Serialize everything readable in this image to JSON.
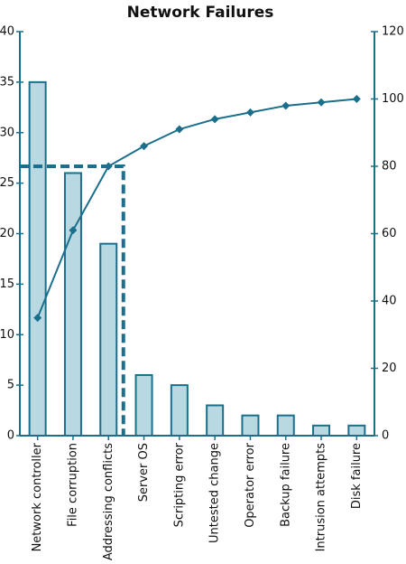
{
  "chart_data": {
    "type": "pareto",
    "title": "Network Failures",
    "categories": [
      "Network controller",
      "File corruption",
      "Addressing conflicts",
      "Server OS",
      "Scripting error",
      "Untested change",
      "Operator error",
      "Backup failure",
      "Intrusion attempts",
      "Disk failure"
    ],
    "series": [
      {
        "type": "bar",
        "color": "#b9d9e2",
        "values": [
          35,
          26,
          19,
          6,
          5,
          3,
          2,
          2,
          1,
          1
        ]
      },
      {
        "type": "line",
        "axis": "y2",
        "color": "#1a6f8c",
        "values": [
          35,
          61,
          80,
          86,
          91,
          94,
          96,
          98,
          99,
          100
        ]
      }
    ],
    "threshold": {
      "axis": "y2",
      "value": 80,
      "category_index": 2
    },
    "ylim": [
      0,
      40
    ],
    "yticks": [
      0,
      5,
      10,
      15,
      20,
      25,
      30,
      35,
      40
    ],
    "y2lim": [
      0,
      120
    ],
    "y2ticks": [
      0,
      20,
      40,
      60,
      80,
      100,
      120
    ],
    "grid": false
  }
}
